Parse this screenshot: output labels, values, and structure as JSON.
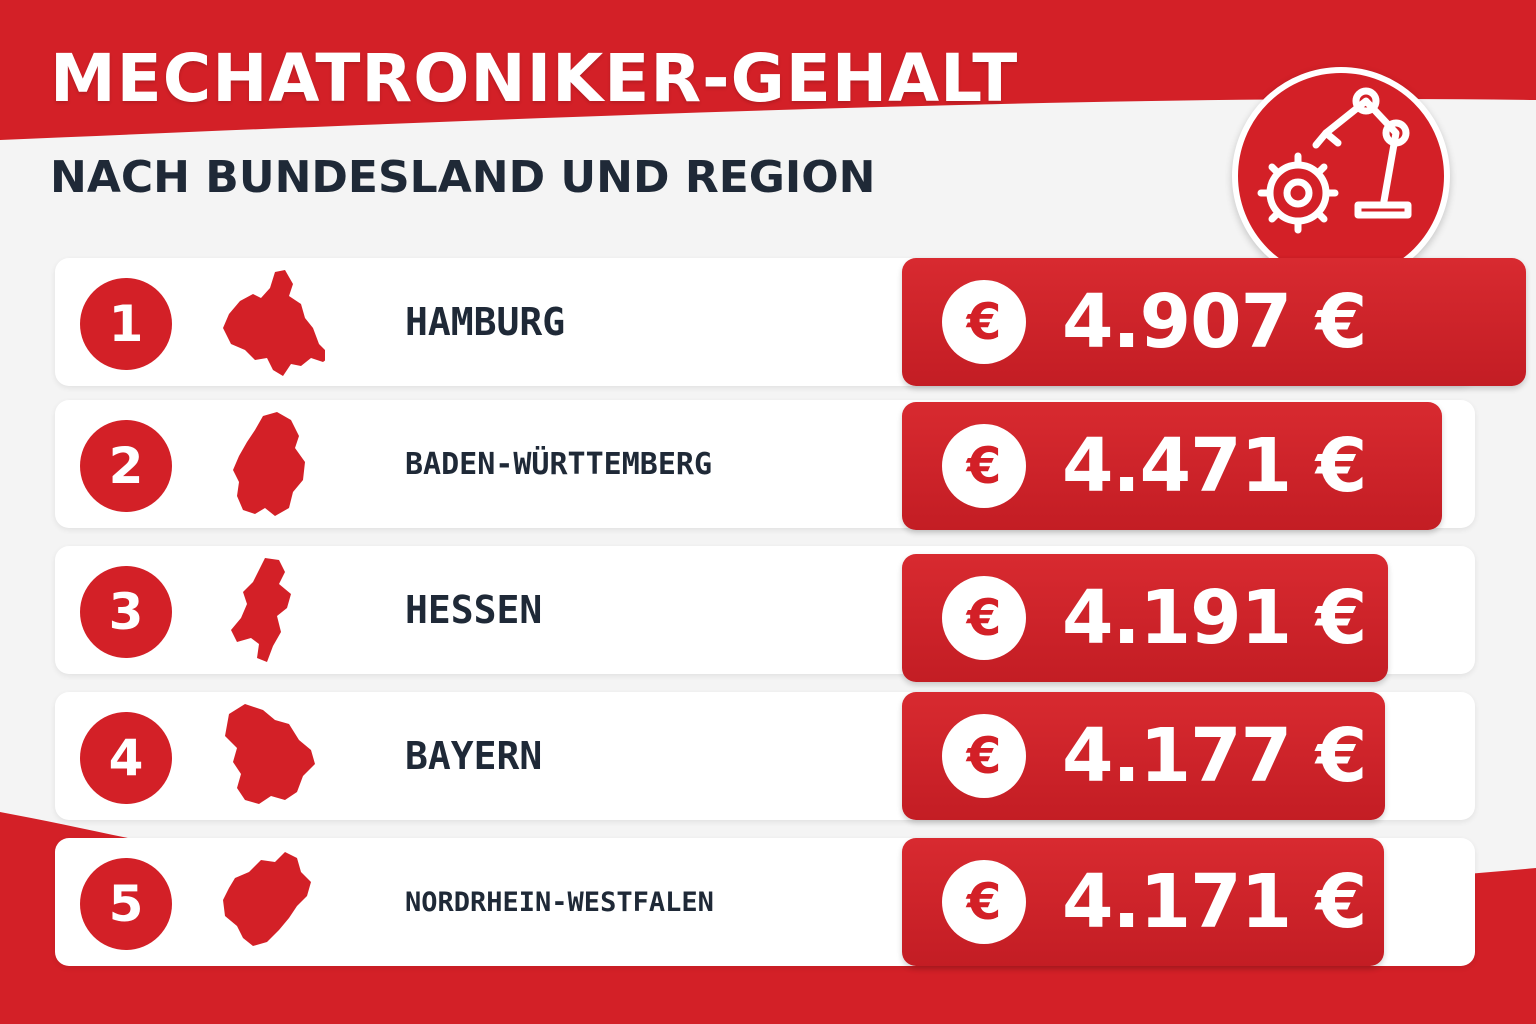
{
  "header": {
    "title": "MECHATRONIKER-GEHALT",
    "subtitle": "NACH BUNDESLAND UND REGION",
    "badge_icon": "robot-arm-gear-icon"
  },
  "colors": {
    "accent": "#d32027",
    "text_dark": "#1f2937",
    "background": "#f4f4f4"
  },
  "chart_data": {
    "type": "bar",
    "title": "MECHATRONIKER-GEHALT",
    "subtitle": "NACH BUNDESLAND UND REGION",
    "currency_symbol": "€",
    "categories": [
      "HAMBURG",
      "BADEN-WÜRTTEMBERG",
      "HESSEN",
      "BAYERN",
      "NORDRHEIN-WESTFALEN"
    ],
    "ranks": [
      "1",
      "2",
      "3",
      "4",
      "5"
    ],
    "values": [
      4907,
      4471,
      4191,
      4177,
      4171
    ],
    "value_labels": [
      "4.907 €",
      "4.471 €",
      "4.191 €",
      "4.177 €",
      "4.171 €"
    ],
    "icons": [
      "hamburg-map-icon",
      "baden-wuerttemberg-map-icon",
      "hessen-map-icon",
      "bayern-map-icon",
      "nordrhein-westfalen-map-icon"
    ],
    "orientation": "horizontal",
    "grid": false
  }
}
